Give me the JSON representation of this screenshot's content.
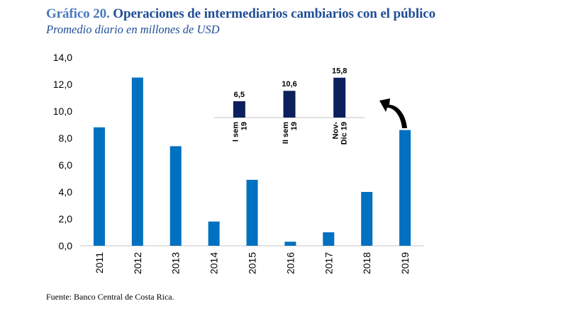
{
  "header": {
    "title_prefix": "Gráfico 20.",
    "title_text": " Operaciones de intermediarios cambiarios con el público",
    "subtitle": "Promedio diario en millones de USD"
  },
  "footer": {
    "source": "Fuente: Banco Central de Costa Rica."
  },
  "colors": {
    "main_bar": "#0070c0",
    "inset_bar": "#0d1f5c",
    "title": "#1f4e96",
    "axis": "#d9d9d9"
  },
  "chart_data": [
    {
      "type": "bar",
      "title": "Operaciones de intermediarios cambiarios con el público",
      "subtitle": "Promedio diario en millones de USD",
      "xlabel": "",
      "ylabel": "",
      "categories": [
        "2011",
        "2012",
        "2013",
        "2014",
        "2015",
        "2016",
        "2017",
        "2018",
        "2019"
      ],
      "values": [
        8.8,
        12.5,
        7.4,
        1.8,
        4.9,
        0.3,
        1.0,
        4.0,
        8.6
      ],
      "ylim": [
        0,
        14
      ],
      "yticks": [
        0,
        2,
        4,
        6,
        8,
        10,
        12,
        14
      ],
      "ytick_labels": [
        "0,0",
        "2,0",
        "4,0",
        "6,0",
        "8,0",
        "10,0",
        "12,0",
        "14,0"
      ],
      "grid": false,
      "legend": "none"
    },
    {
      "type": "bar",
      "title": "Inset 2019 detail",
      "categories": [
        [
          "I sem",
          "19"
        ],
        [
          "II sem",
          "19"
        ],
        [
          "Nov-",
          "Dic 19"
        ]
      ],
      "values": [
        6.5,
        10.6,
        15.8
      ],
      "data_labels": [
        "6,5",
        "10,6",
        "15,8"
      ],
      "ylim": [
        0,
        16
      ],
      "annotation": "arrow from 2019 bar to inset",
      "legend": "none"
    }
  ]
}
